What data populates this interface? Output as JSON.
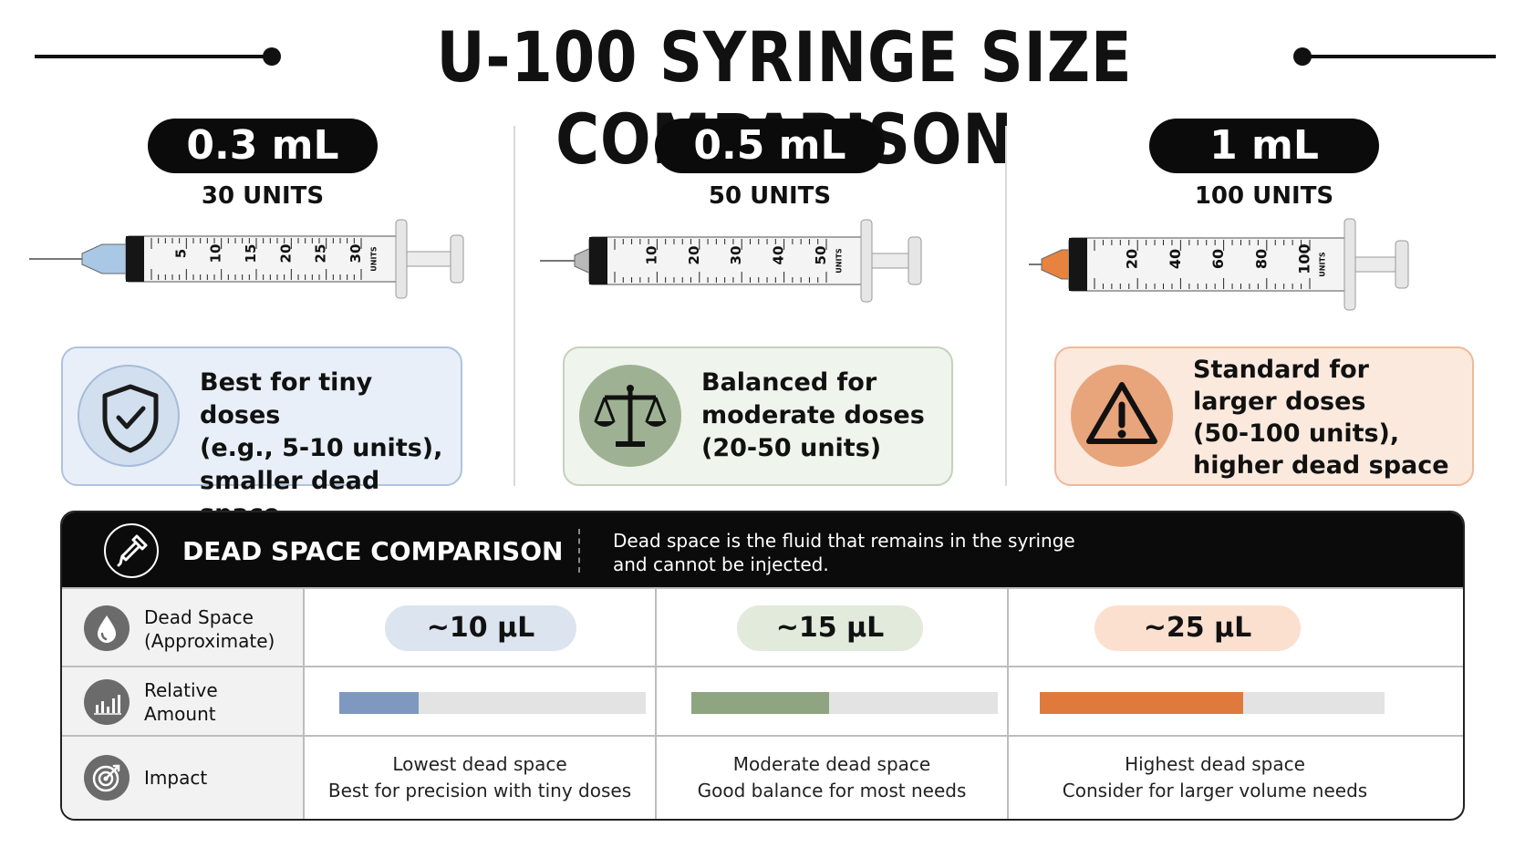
{
  "title": "U-100 SYRINGE SIZE COMPARISON",
  "colors": {
    "blue": "#7f98c0",
    "green": "#8fa582",
    "orange": "#e07a3c",
    "blue_bg": "#e8eff8",
    "green_bg": "#eff4ec",
    "orange_bg": "#fbe9dd",
    "black": "#0b0b0b"
  },
  "syringes": [
    {
      "volume": "0.3 mL",
      "units": "30 UNITS",
      "scale_labels": [
        "5",
        "10",
        "15",
        "20",
        "25",
        "30"
      ],
      "scale_unit": "UNITS",
      "hub_color": "#a9c8e6",
      "card_text": [
        "Best for tiny doses",
        "(e.g., 5-10 units),",
        "smaller dead space"
      ],
      "card_icon": "shield-check-icon"
    },
    {
      "volume": "0.5 mL",
      "units": "50 UNITS",
      "scale_labels": [
        "10",
        "20",
        "30",
        "40",
        "50"
      ],
      "scale_unit": "UNITS",
      "hub_color": "#b9b9b9",
      "card_text": [
        "Balanced for",
        "moderate doses",
        "(20-50 units)"
      ],
      "card_icon": "balance-scale-icon"
    },
    {
      "volume": "1 mL",
      "units": "100 UNITS",
      "scale_labels": [
        "20",
        "40",
        "60",
        "80",
        "100"
      ],
      "scale_unit": "UNITS",
      "hub_color": "#e8823f",
      "card_text": [
        "Standard for",
        "larger doses",
        "(50-100 units),",
        "higher dead space"
      ],
      "card_icon": "warning-triangle-icon"
    }
  ],
  "dead_space": {
    "title": "DEAD SPACE COMPARISON",
    "icon": "dropper-icon",
    "description_lines": [
      "Dead space is the fluid that remains in the syringe",
      "and cannot be injected."
    ],
    "rows": {
      "dead_space": {
        "label_lines": [
          "Dead Space",
          "(Approximate)"
        ],
        "icon": "drop-icon",
        "values": [
          "~10 µL",
          "~15 µL",
          "~25 µL"
        ]
      },
      "relative": {
        "label_lines": [
          "Relative",
          "Amount"
        ],
        "icon": "bar-chart-icon",
        "fractions": [
          0.26,
          0.45,
          0.59
        ]
      },
      "impact": {
        "label": "Impact",
        "icon": "target-icon",
        "values": [
          [
            "Lowest dead space",
            "Best for precision with tiny doses"
          ],
          [
            "Moderate dead space",
            "Good balance for most needs"
          ],
          [
            "Highest dead space",
            "Consider for larger volume needs"
          ]
        ]
      }
    }
  }
}
